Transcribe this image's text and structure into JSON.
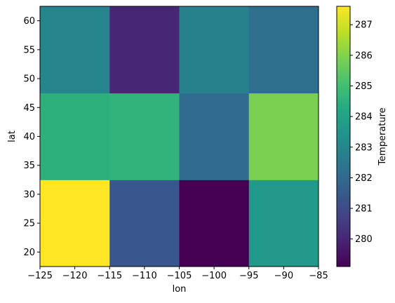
{
  "chart_data": {
    "type": "heatmap",
    "xlabel": "lon",
    "ylabel": "lat",
    "colorbar_label": "Temperature",
    "colormap": "viridis",
    "x_edges": [
      -125,
      -115,
      -105,
      -95,
      -85
    ],
    "y_edges": [
      17.5,
      32.5,
      47.5,
      62.5
    ],
    "xlim": [
      -125,
      -85
    ],
    "ylim": [
      17.5,
      62.5
    ],
    "x_ticks": [
      -125,
      -120,
      -115,
      -110,
      -105,
      -100,
      -95,
      -90,
      -85
    ],
    "x_tick_labels": [
      "−125",
      "−120",
      "−115",
      "−110",
      "−105",
      "−100",
      "−95",
      "−90",
      "−85"
    ],
    "y_ticks": [
      20,
      25,
      30,
      35,
      40,
      45,
      50,
      55,
      60
    ],
    "y_tick_labels": [
      "20",
      "25",
      "30",
      "35",
      "40",
      "45",
      "50",
      "55",
      "60"
    ],
    "lat_centers": [
      25,
      40,
      55
    ],
    "lon_centers": [
      -120,
      -110,
      -100,
      -90
    ],
    "values": [
      [
        287.6,
        281.4,
        279.1,
        283.7
      ],
      [
        284.5,
        284.6,
        282.1,
        285.9
      ],
      [
        282.9,
        280.0,
        282.8,
        282.2
      ]
    ],
    "colorbar_range": [
      279.1,
      287.6
    ],
    "colorbar_ticks": [
      280,
      281,
      282,
      283,
      284,
      285,
      286,
      287
    ],
    "colorbar_tick_labels": [
      "280",
      "281",
      "282",
      "283",
      "284",
      "285",
      "286",
      "287"
    ],
    "grid": false,
    "legend": "none"
  }
}
